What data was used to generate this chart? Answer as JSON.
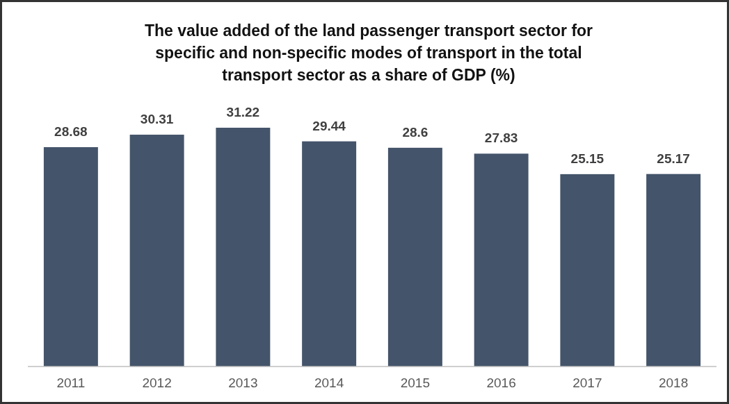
{
  "chart_data": {
    "type": "bar",
    "title": "The value added of the land passenger transport sector for specific and non-specific modes of transport in the total transport sector as a share of GDP (%)",
    "categories": [
      "2011",
      "2012",
      "2013",
      "2014",
      "2015",
      "2016",
      "2017",
      "2018"
    ],
    "values": [
      28.68,
      30.31,
      31.22,
      29.44,
      28.6,
      27.83,
      25.15,
      25.17
    ],
    "color": "#44546a",
    "data_labels": true
  }
}
